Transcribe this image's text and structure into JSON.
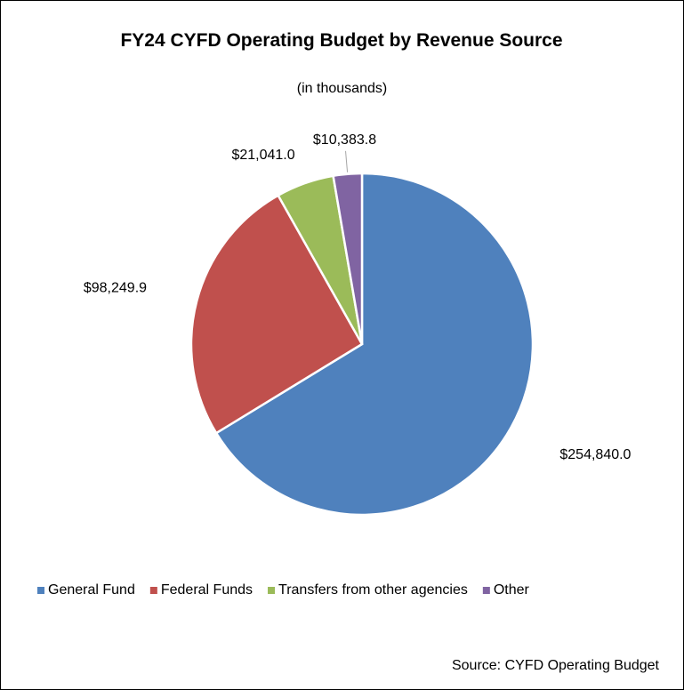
{
  "chart_data": {
    "type": "pie",
    "title": "FY24 CYFD Operating Budget by Revenue Source",
    "subtitle": "(in thousands)",
    "categories": [
      "General Fund",
      "Federal Funds",
      "Transfers from other agencies",
      "Other"
    ],
    "values": [
      254840.0,
      98249.9,
      21041.0,
      10383.8
    ],
    "value_labels": [
      "$254,840.0",
      "$98,249.9",
      "$21,041.0",
      "$10,383.8"
    ],
    "colors": [
      "#4f81bd",
      "#c0504d",
      "#9bbb59",
      "#8064a2"
    ],
    "legend": "bottom",
    "source": "Source: CYFD Operating Budget"
  }
}
